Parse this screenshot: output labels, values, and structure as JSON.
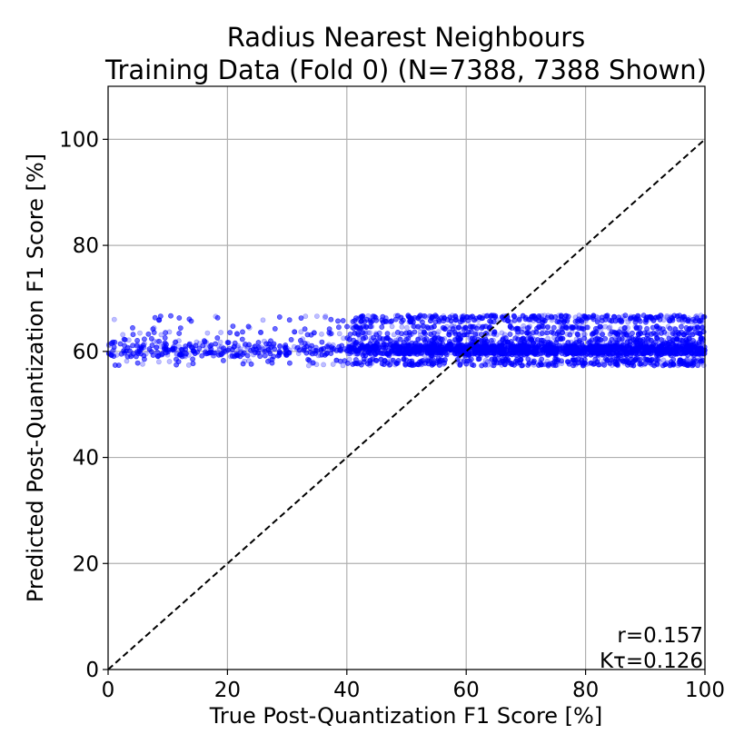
{
  "chart_data": {
    "type": "scatter",
    "title": "Radius Nearest Neighbours",
    "subtitle": "Training Data (Fold 0) (N=7388, 7388 Shown)",
    "xlabel": "True Post-Quantization F1 Score [%]",
    "ylabel": "Predicted Post-Quantization F1 Score [%]",
    "xlim": [
      0,
      100
    ],
    "ylim": [
      0,
      110
    ],
    "xticks": [
      0,
      20,
      40,
      60,
      80,
      100
    ],
    "yticks": [
      0,
      20,
      40,
      60,
      80,
      100
    ],
    "grid": true,
    "reference_line": {
      "style": "dashed",
      "color": "#000000",
      "x": [
        0,
        100
      ],
      "y": [
        0,
        100
      ]
    },
    "series": [
      {
        "color": "#0000ff",
        "opacity": 0.25,
        "count": 7388,
        "bands_y": [
          57.6,
          58.3,
          59.5,
          60.5,
          61.0,
          61.6,
          62.3,
          63.4,
          64.5,
          65.8,
          66.5
        ],
        "x_range": [
          0,
          100
        ],
        "y_range": [
          57,
          67.5
        ]
      }
    ],
    "annotations": [
      {
        "text": "r=0.157"
      },
      {
        "text": "Kτ=0.126"
      }
    ]
  }
}
